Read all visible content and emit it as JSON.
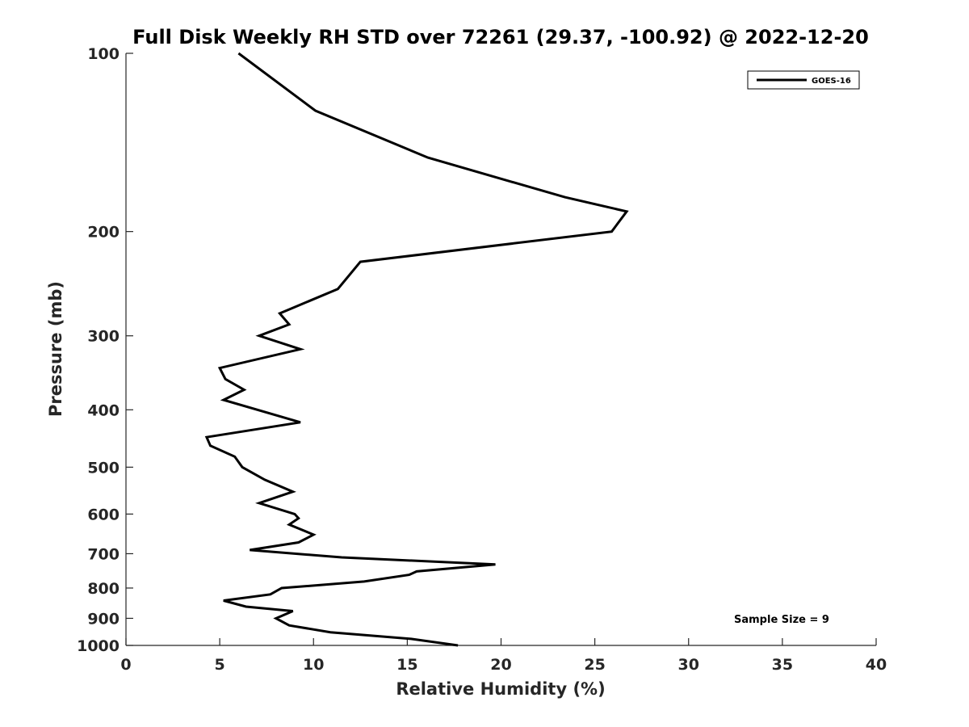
{
  "chart_data": {
    "type": "line",
    "title": "Full Disk Weekly RH STD over 72261 (29.37, -100.92) @ 2022-12-20",
    "xlabel": "Relative Humidity (%)",
    "ylabel": "Pressure (mb)",
    "xlim": [
      0,
      40
    ],
    "ylim": [
      100,
      1000
    ],
    "y_scale": "log",
    "y_reversed": true,
    "x_ticks": [
      0,
      5,
      10,
      15,
      20,
      25,
      30,
      35,
      40
    ],
    "y_ticks": [
      100,
      200,
      300,
      400,
      500,
      600,
      700,
      800,
      900,
      1000
    ],
    "grid": false,
    "legend_position": "top-right",
    "series": [
      {
        "name": "GOES-16",
        "color": "#000000",
        "x": [
          6.0,
          10.1,
          16.1,
          23.4,
          26.7,
          25.9,
          12.5,
          11.3,
          8.2,
          8.7,
          7.1,
          9.3,
          5.0,
          5.3,
          6.3,
          5.2,
          9.3,
          4.3,
          4.5,
          5.8,
          6.2,
          7.4,
          8.9,
          7.1,
          9.0,
          9.2,
          8.7,
          10.0,
          9.2,
          6.6,
          11.5,
          19.7,
          15.5,
          15.1,
          12.7,
          8.3,
          7.7,
          5.2,
          6.4,
          8.9,
          8.0,
          8.7,
          10.9,
          15.2,
          17.7
        ],
        "y": [
          100,
          125,
          150,
          175,
          185,
          200,
          225,
          250,
          275,
          287,
          300,
          316,
          340,
          355,
          370,
          385,
          420,
          445,
          460,
          480,
          500,
          525,
          550,
          575,
          600,
          610,
          625,
          650,
          670,
          690,
          710,
          730,
          750,
          760,
          780,
          800,
          820,
          840,
          860,
          875,
          900,
          925,
          950,
          975,
          1000
        ]
      }
    ],
    "annotations": [
      "Sample Size = 9"
    ]
  }
}
